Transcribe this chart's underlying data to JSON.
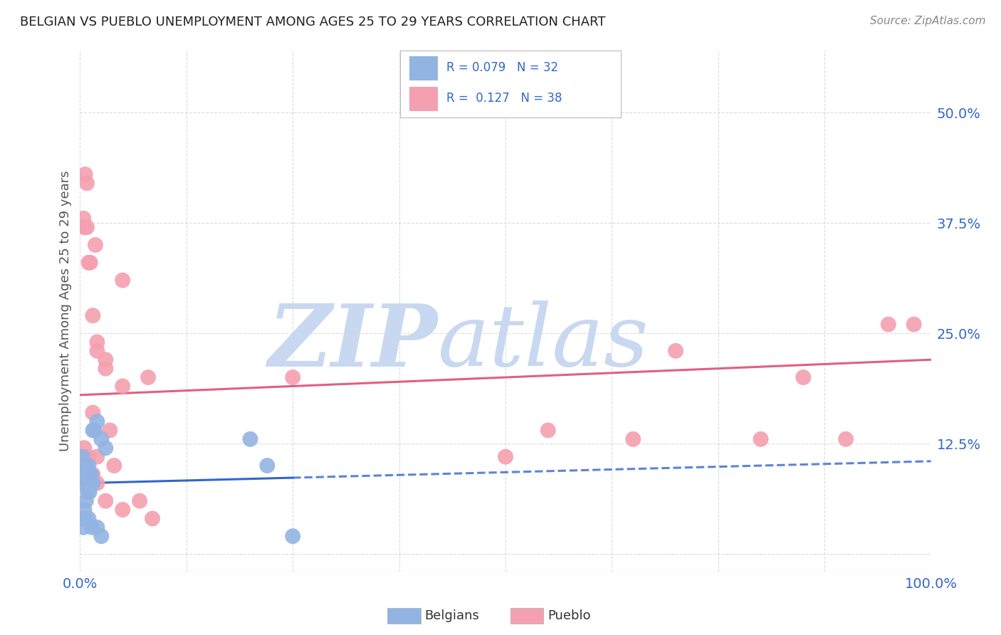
{
  "title": "BELGIAN VS PUEBLO UNEMPLOYMENT AMONG AGES 25 TO 29 YEARS CORRELATION CHART",
  "source": "Source: ZipAtlas.com",
  "ylabel": "Unemployment Among Ages 25 to 29 years",
  "xlim": [
    0,
    100
  ],
  "ylim": [
    -2,
    57
  ],
  "ytick_vals": [
    0,
    12.5,
    25.0,
    37.5,
    50.0
  ],
  "ytick_labels": [
    "",
    "12.5%",
    "25.0%",
    "37.5%",
    "50.0%"
  ],
  "xtick_vals": [
    0,
    12.5,
    25,
    37.5,
    50,
    62.5,
    75,
    87.5,
    100
  ],
  "xtick_labels": [
    "0.0%",
    "",
    "",
    "",
    "",
    "",
    "",
    "",
    "100.0%"
  ],
  "belgian_R": "0.079",
  "belgian_N": "32",
  "pueblo_R": "0.127",
  "pueblo_N": "38",
  "belgian_dot_color": "#92b4e3",
  "pueblo_dot_color": "#f4a0b0",
  "belgian_line_color": "#3366cc",
  "pueblo_line_color": "#e06080",
  "belgian_scatter_x": [
    0.3,
    0.5,
    0.7,
    0.9,
    1.1,
    1.3,
    1.5,
    1.7,
    0.2,
    0.4,
    0.6,
    0.8,
    1.0,
    1.2,
    1.5,
    2.0,
    2.5,
    3.0,
    0.2,
    0.3,
    0.5,
    0.7,
    0.9,
    0.4,
    0.6,
    1.0,
    1.4,
    2.0,
    2.5,
    20.0,
    22.0,
    25.0
  ],
  "belgian_scatter_y": [
    11,
    10,
    9,
    8,
    7,
    9,
    8,
    14,
    9,
    8,
    10,
    10,
    10,
    9,
    14,
    15,
    13,
    12,
    4,
    4,
    5,
    6,
    7,
    3,
    4,
    4,
    3,
    3,
    2,
    13,
    10,
    2
  ],
  "pueblo_scatter_x": [
    0.4,
    0.6,
    0.8,
    1.0,
    1.5,
    2.0,
    3.0,
    5.0,
    1.5,
    2.0,
    0.5,
    0.8,
    1.2,
    1.8,
    3.0,
    5.0,
    8.0,
    2.0,
    25.0,
    50.0,
    55.0,
    65.0,
    70.0,
    80.0,
    85.0,
    90.0,
    95.0,
    98.0,
    0.5,
    1.0,
    1.5,
    2.0,
    3.0,
    5.0,
    7.0,
    8.5,
    3.5,
    4.0
  ],
  "pueblo_scatter_y": [
    38,
    43,
    42,
    33,
    27,
    24,
    21,
    31,
    16,
    23,
    37,
    37,
    33,
    35,
    22,
    19,
    20,
    11,
    20,
    11,
    14,
    13,
    23,
    13,
    20,
    13,
    26,
    26,
    12,
    11,
    9,
    8,
    6,
    5,
    6,
    4,
    14,
    10
  ],
  "belgian_trend_start_y": 8.0,
  "belgian_trend_end_y": 10.5,
  "pueblo_trend_start_y": 18.0,
  "pueblo_trend_end_y": 22.0,
  "watermark_zip": "ZIP",
  "watermark_atlas": "atlas",
  "watermark_color": "#c8d8f0",
  "background_color": "#ffffff",
  "grid_color": "#cccccc",
  "tick_label_color": "#3366cc",
  "title_color": "#222222",
  "source_color": "#888888",
  "axis_label_color": "#555555"
}
